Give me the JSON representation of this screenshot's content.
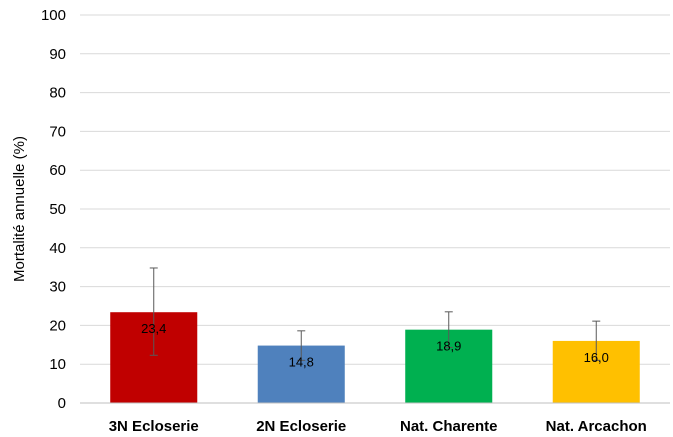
{
  "chart_data": {
    "type": "bar",
    "title": "",
    "xlabel": "",
    "ylabel": "Mortalité annuelle (%)",
    "ylim": [
      0,
      100
    ],
    "yticks": [
      0,
      10,
      20,
      30,
      40,
      50,
      60,
      70,
      80,
      90,
      100
    ],
    "grid": true,
    "categories": [
      "3N Ecloserie",
      "2N Ecloserie",
      "Nat. Charente",
      "Nat. Arcachon"
    ],
    "values": [
      23.4,
      14.8,
      18.9,
      16.0
    ],
    "data_labels": [
      "23,4",
      "14,8",
      "18,9",
      "16,0"
    ],
    "error_low": [
      12.3,
      11.0,
      14.3,
      11.0
    ],
    "error_high": [
      34.8,
      18.6,
      23.5,
      21.1
    ],
    "colors": [
      "#C00000",
      "#4F81BD",
      "#00B050",
      "#FFC000"
    ]
  }
}
